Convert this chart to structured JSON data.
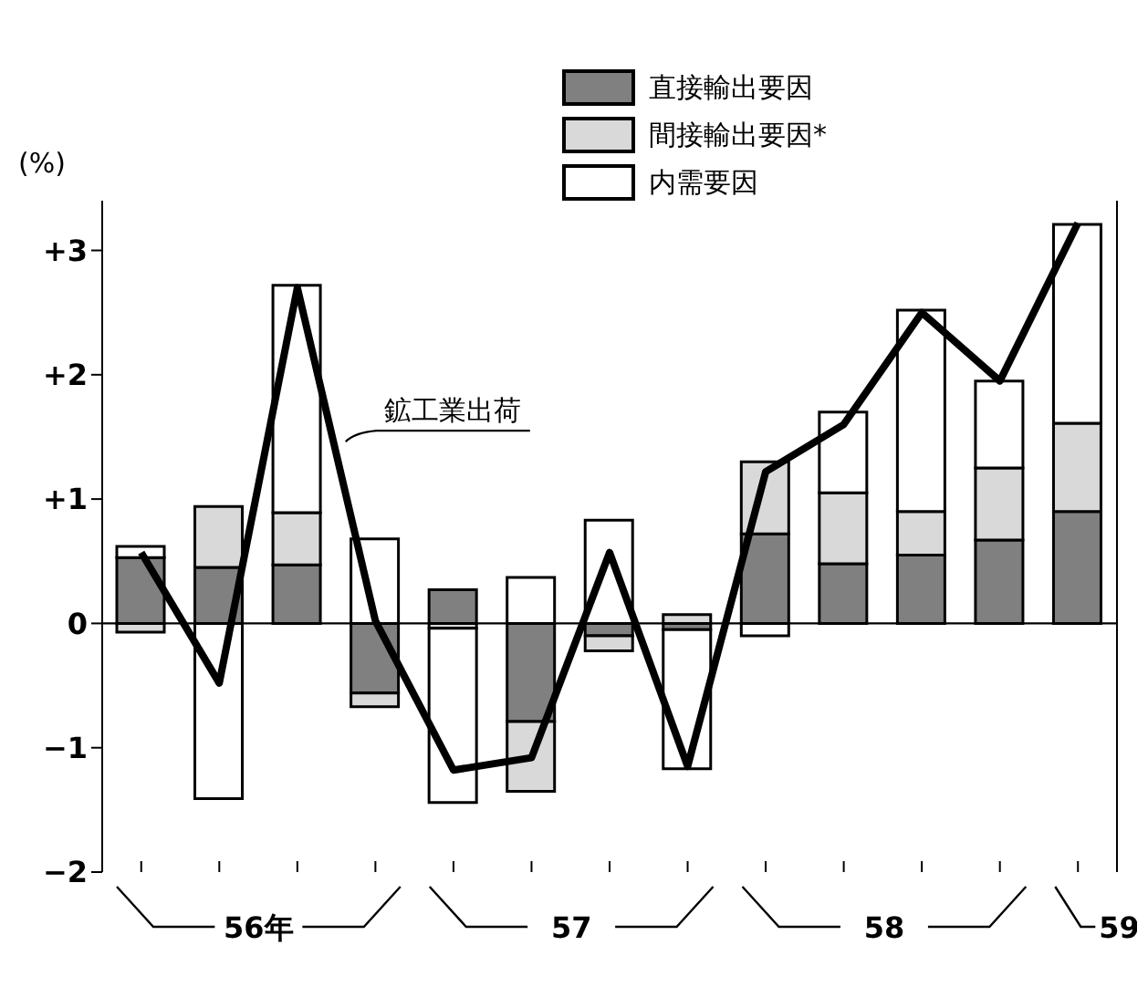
{
  "chart_data": {
    "type": "bar",
    "stacked": true,
    "ylabel": "(%)",
    "categories": [
      null,
      null,
      null,
      null,
      null,
      null,
      null,
      null,
      null,
      null,
      null,
      null,
      null
    ],
    "series": [
      {
        "name": "直接輸出要因",
        "color": "#808080",
        "values": [
          0.53,
          0.45,
          0.47,
          -0.56,
          0.27,
          -0.79,
          -0.1,
          -0.05,
          0.72,
          0.48,
          0.55,
          0.67,
          0.9
        ]
      },
      {
        "name": "間接輸出要因*",
        "color": "#d9d9d9",
        "values": [
          -0.07,
          0.49,
          0.42,
          -0.11,
          -0.04,
          -0.56,
          -0.12,
          0.07,
          0.58,
          0.57,
          0.35,
          0.58,
          0.71
        ]
      },
      {
        "name": "内需要因",
        "color": "#ffffff",
        "values": [
          0.09,
          -1.41,
          1.83,
          0.68,
          -1.4,
          0.37,
          0.83,
          -1.12,
          -0.1,
          0.65,
          1.62,
          0.7,
          1.6
        ]
      },
      {
        "name": "鉱工業出荷",
        "type": "line",
        "color": "#000000",
        "values": [
          0.57,
          -0.48,
          2.7,
          0.02,
          -1.18,
          -1.08,
          0.57,
          -1.15,
          1.22,
          1.6,
          2.5,
          1.95,
          3.22
        ]
      }
    ],
    "ylim": [
      -2,
      3.4
    ],
    "yticks": [
      {
        "value": -2,
        "label": "−2"
      },
      {
        "value": -1,
        "label": "−1"
      },
      0,
      {
        "value": 1,
        "label": "+1"
      },
      {
        "value": 2,
        "label": "+2"
      },
      {
        "value": 3,
        "label": "+3"
      }
    ],
    "ref_lines": [
      {
        "axis": "y",
        "value": 0,
        "color": "#000000"
      }
    ],
    "legend": "top right",
    "marker": "none",
    "annotations": [
      "56年",
      "57",
      "58",
      "59"
    ]
  }
}
